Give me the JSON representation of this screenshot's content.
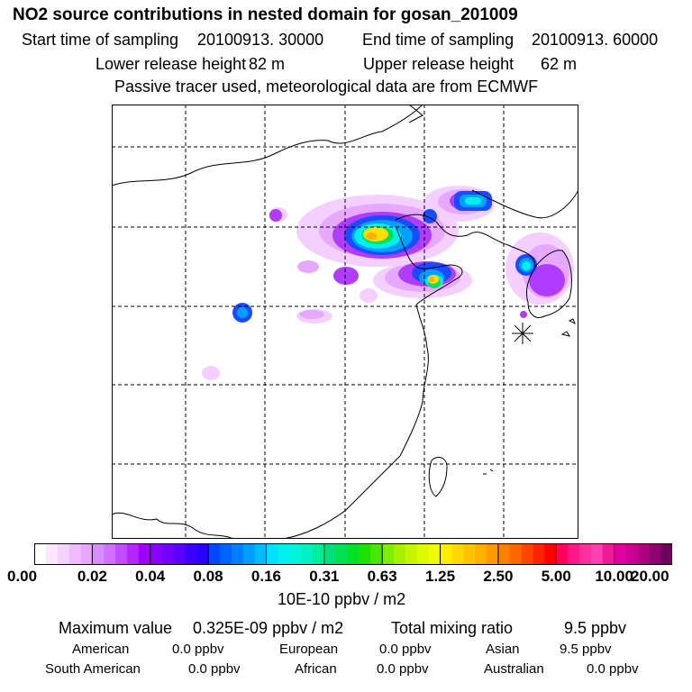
{
  "title": "NO2 source contributions in nested domain for gosan_201009",
  "header": {
    "start_label": "Start time of sampling",
    "start_value": "20100913. 30000",
    "end_label": "End time of sampling",
    "end_value": "20100913. 60000",
    "lower_label": "Lower release height",
    "lower_value": "82 m",
    "upper_label": "Upper release height",
    "upper_value": "62 m",
    "note": "Passive tracer used, meteorological data are from ECMWF"
  },
  "map": {
    "receptor_marker": "asterisk-icon",
    "release_site": "gosan"
  },
  "colorbar": {
    "ticks": [
      "0.00",
      "0.02",
      "0.04",
      "0.08",
      "0.16",
      "0.31",
      "0.63",
      "1.25",
      "2.50",
      "5.00",
      "10.00",
      "20.00"
    ],
    "unit": "10E-10 ppbv / m2",
    "colors": [
      [
        "#ffffff",
        "#fbe8ff",
        "#f6d3ff",
        "#f0bcff",
        "#e9a6ff"
      ],
      [
        "#d98cff",
        "#cf70ff",
        "#c24cff",
        "#b427ff",
        "#a000ff"
      ],
      [
        "#8a00ff",
        "#7300ff",
        "#5a00ff",
        "#3c00ff",
        "#2a00ff"
      ],
      [
        "#0048ff",
        "#0062ff",
        "#0080ff",
        "#009dff",
        "#00bcff"
      ],
      [
        "#00e0ff",
        "#00f0f0",
        "#00f5d8",
        "#00f2c0",
        "#00ee9a"
      ],
      [
        "#00e07a",
        "#00e050",
        "#00e025",
        "#20e000",
        "#48e600"
      ],
      [
        "#80ee00",
        "#a6f000",
        "#c6f500",
        "#e0f800",
        "#f0ff00"
      ],
      [
        "#ffee00",
        "#ffd800",
        "#ffc400",
        "#ffb000",
        "#ff9900"
      ],
      [
        "#ff8000",
        "#ff6600",
        "#ff4400",
        "#ff2200",
        "#ff0000"
      ],
      [
        "#ff0060",
        "#ff1888",
        "#ff30a0",
        "#ff40b0",
        "#ee1a9a"
      ],
      [
        "#e000a0",
        "#cc0090",
        "#b00080",
        "#900070",
        "#700060"
      ]
    ]
  },
  "footer": {
    "max_label": "Maximum value",
    "max_value": "0.325E-09 ppbv / m2",
    "total_label": "Total mixing ratio",
    "total_value": "9.5 ppbv",
    "regions": [
      {
        "name": "American",
        "value": "0.0 ppbv"
      },
      {
        "name": "European",
        "value": "0.0 ppbv"
      },
      {
        "name": "Asian",
        "value": "9.5 ppbv"
      },
      {
        "name": "South American",
        "value": "0.0 ppbv"
      },
      {
        "name": "African",
        "value": "0.0 ppbv"
      },
      {
        "name": "Australian",
        "value": "0.0 ppbv"
      }
    ]
  },
  "palette": {
    "light_violet": "#f3d0ff",
    "pale_violet": "#e7a8ff",
    "violet": "#b03cff",
    "purple": "#8a00ff",
    "blue": "#1a4cff",
    "azure": "#00a0ff",
    "cyan": "#00f0f0",
    "green": "#00e060",
    "yellow": "#ffe000",
    "orange": "#ffb000",
    "outline": "#000000",
    "grid": "#000000"
  }
}
